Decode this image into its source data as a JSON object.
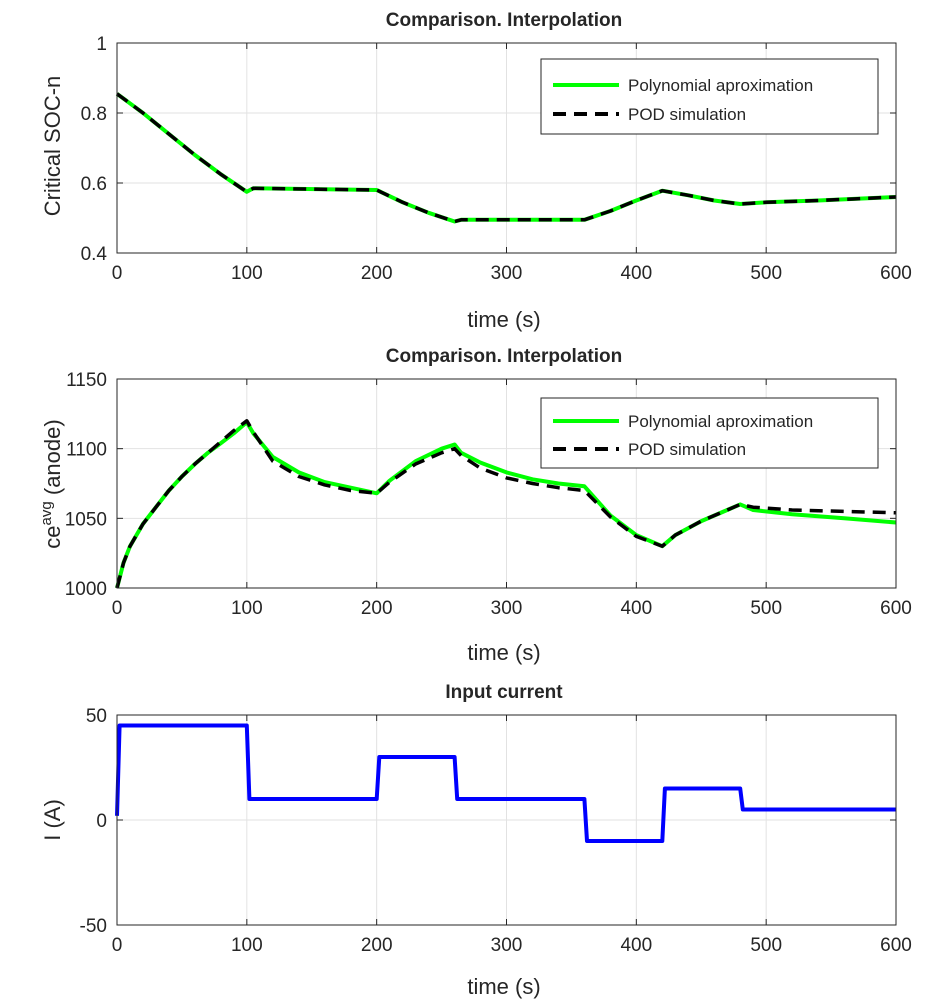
{
  "colors": {
    "polynomial": "#00ff00",
    "pod": "#000000",
    "current": "#0000ff",
    "axes": "#262626",
    "grid": "#e2e2e2"
  },
  "chart_data": [
    {
      "type": "line",
      "title": "Comparison. Interpolation",
      "xlabel": "time (s)",
      "ylabel": "Critical SOC-n",
      "xlim": [
        0,
        600
      ],
      "ylim": [
        0.4,
        1
      ],
      "xticks": [
        0,
        100,
        200,
        300,
        400,
        500,
        600
      ],
      "yticks": [
        0.4,
        0.6,
        0.8,
        1
      ],
      "ytick_labels": [
        "0.4",
        "0.6",
        "0.8",
        "1"
      ],
      "grid": true,
      "legend_position": "top-right",
      "series": [
        {
          "name": "Polynomial aproximation",
          "style": "solid",
          "color": "#00ff00",
          "x": [
            0,
            20,
            40,
            60,
            80,
            100,
            105,
            200,
            220,
            240,
            260,
            265,
            360,
            380,
            400,
            420,
            440,
            460,
            480,
            500,
            540,
            600
          ],
          "y": [
            0.855,
            0.8,
            0.74,
            0.68,
            0.625,
            0.575,
            0.585,
            0.58,
            0.545,
            0.515,
            0.49,
            0.495,
            0.495,
            0.52,
            0.55,
            0.578,
            0.565,
            0.55,
            0.54,
            0.545,
            0.55,
            0.56
          ]
        },
        {
          "name": "POD simulation",
          "style": "dashed",
          "color": "#000000",
          "x": [
            0,
            20,
            40,
            60,
            80,
            100,
            105,
            200,
            220,
            240,
            260,
            265,
            360,
            380,
            400,
            420,
            440,
            460,
            480,
            500,
            540,
            600
          ],
          "y": [
            0.855,
            0.8,
            0.74,
            0.68,
            0.625,
            0.575,
            0.585,
            0.58,
            0.545,
            0.515,
            0.49,
            0.495,
            0.495,
            0.52,
            0.55,
            0.578,
            0.565,
            0.55,
            0.54,
            0.545,
            0.55,
            0.56
          ]
        }
      ]
    },
    {
      "type": "line",
      "title": "Comparison. Interpolation",
      "xlabel": "time (s)",
      "ylabel_main": "ce",
      "ylabel_sup": "avg",
      "ylabel_tail": " (anode)",
      "xlim": [
        0,
        600
      ],
      "ylim": [
        1000,
        1150
      ],
      "xticks": [
        0,
        100,
        200,
        300,
        400,
        500,
        600
      ],
      "yticks": [
        1000,
        1050,
        1100,
        1150
      ],
      "ytick_labels": [
        "1000",
        "1050",
        "1100",
        "1150"
      ],
      "grid": true,
      "legend_position": "top-right",
      "series": [
        {
          "name": "Polynomial aproximation",
          "style": "solid",
          "color": "#00ff00",
          "x": [
            0,
            5,
            10,
            20,
            30,
            40,
            50,
            60,
            70,
            80,
            90,
            100,
            105,
            120,
            140,
            160,
            180,
            200,
            210,
            230,
            250,
            260,
            265,
            280,
            300,
            320,
            340,
            360,
            380,
            400,
            420,
            430,
            450,
            470,
            480,
            490,
            520,
            560,
            600
          ],
          "y": [
            1000,
            1018,
            1030,
            1046,
            1058,
            1070,
            1080,
            1089,
            1097,
            1104,
            1111,
            1119,
            1111,
            1094,
            1083,
            1076,
            1072,
            1068,
            1077,
            1091,
            1100,
            1103,
            1097,
            1090,
            1083,
            1078,
            1075,
            1073,
            1052,
            1038,
            1030,
            1038,
            1048,
            1056,
            1060,
            1056,
            1053,
            1050,
            1047
          ]
        },
        {
          "name": "POD simulation",
          "style": "dashed",
          "color": "#000000",
          "x": [
            0,
            5,
            10,
            20,
            30,
            40,
            50,
            60,
            70,
            80,
            90,
            100,
            105,
            120,
            140,
            160,
            180,
            200,
            210,
            230,
            250,
            260,
            265,
            280,
            300,
            320,
            340,
            360,
            380,
            400,
            420,
            430,
            450,
            470,
            480,
            490,
            520,
            560,
            600
          ],
          "y": [
            1000,
            1018,
            1030,
            1046,
            1058,
            1070,
            1080,
            1089,
            1097,
            1105,
            1113,
            1120,
            1112,
            1091,
            1080,
            1074,
            1070,
            1068,
            1076,
            1089,
            1097,
            1100,
            1095,
            1086,
            1079,
            1075,
            1072,
            1070,
            1051,
            1037,
            1030,
            1038,
            1048,
            1056,
            1060,
            1058,
            1056,
            1055,
            1054
          ]
        }
      ]
    },
    {
      "type": "line",
      "title": "Input current",
      "xlabel": "time (s)",
      "ylabel": "I (A)",
      "xlim": [
        0,
        600
      ],
      "ylim": [
        -50,
        50
      ],
      "xticks": [
        0,
        100,
        200,
        300,
        400,
        500,
        600
      ],
      "yticks": [
        -50,
        0,
        50
      ],
      "ytick_labels": [
        "-50",
        "0",
        "50"
      ],
      "grid": true,
      "series": [
        {
          "color": "#0000ff",
          "style": "solid",
          "x": [
            0,
            2,
            100,
            102,
            200,
            202,
            260,
            262,
            360,
            362,
            420,
            422,
            480,
            482,
            600
          ],
          "y": [
            2,
            45,
            45,
            10,
            10,
            30,
            30,
            10,
            10,
            -10,
            -10,
            15,
            15,
            5,
            5
          ]
        }
      ]
    }
  ]
}
